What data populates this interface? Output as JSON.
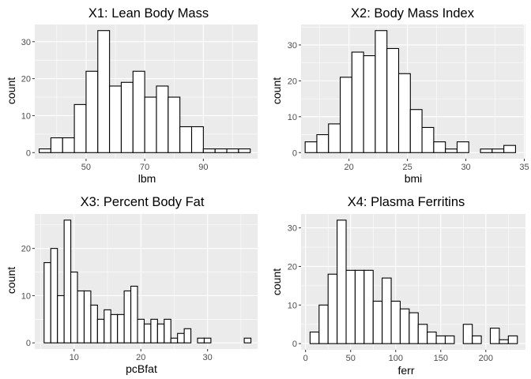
{
  "chart_data": [
    {
      "type": "bar",
      "title": "X1: Lean Body Mass",
      "xlabel": "lbm",
      "ylabel": "count",
      "xlim": [
        32.5,
        108.5
      ],
      "ylim": [
        -1.65,
        34.65
      ],
      "xticks": [
        50,
        70,
        90
      ],
      "yticks": [
        0,
        10,
        20,
        30
      ],
      "xminor": [
        40,
        60,
        80,
        100
      ],
      "yminor": [
        5,
        15,
        25
      ],
      "bars": {
        "x": [
          36,
          40,
          44,
          48,
          52,
          56,
          60,
          64,
          68,
          72,
          76,
          80,
          84,
          88,
          92,
          96,
          100,
          104
        ],
        "values": [
          1,
          4,
          4,
          13,
          22,
          33,
          18,
          19,
          22,
          15,
          18,
          15,
          7,
          7,
          1,
          1,
          1,
          1
        ]
      }
    },
    {
      "type": "bar",
      "title": "X2: Body Mass Index",
      "xlabel": "bmi",
      "ylabel": "count",
      "xlim": [
        15.9,
        35.1
      ],
      "ylim": [
        -1.7,
        35.7
      ],
      "xticks": [
        20,
        25,
        30,
        35
      ],
      "yticks": [
        0,
        10,
        20,
        30
      ],
      "xminor": [
        17.5,
        22.5,
        27.5,
        32.5
      ],
      "yminor": [
        5,
        15,
        25,
        35
      ],
      "bars": {
        "x": [
          16.75,
          17.75,
          18.75,
          19.75,
          20.75,
          21.75,
          22.75,
          23.75,
          24.75,
          25.75,
          26.75,
          27.75,
          28.75,
          29.75,
          30.75,
          31.75,
          32.75,
          33.75
        ],
        "values": [
          3,
          5,
          8,
          21,
          28,
          27,
          34,
          29,
          22,
          12,
          7,
          3,
          1,
          3,
          0,
          1,
          1,
          2
        ]
      }
    },
    {
      "type": "bar",
      "title": "X3: Percent Body Fat",
      "xlabel": "pcBfat",
      "ylabel": "count",
      "xlim": [
        4.1,
        37.5
      ],
      "ylim": [
        -1.3,
        27.3
      ],
      "xticks": [
        10,
        20,
        30
      ],
      "yticks": [
        0,
        10,
        20
      ],
      "xminor": [
        5,
        15,
        25,
        35
      ],
      "yminor": [
        5,
        15,
        25
      ],
      "bars": {
        "x": [
          6,
          7,
          8,
          9,
          10,
          11,
          12,
          13,
          14,
          15,
          16,
          17,
          18,
          19,
          20,
          21,
          22,
          23,
          24,
          25,
          26,
          27,
          28,
          29,
          30,
          31,
          32,
          33,
          34,
          35,
          36
        ],
        "values": [
          17,
          20,
          10,
          26,
          15,
          11,
          11,
          8,
          5,
          7,
          6,
          6,
          11,
          12,
          5,
          4,
          5,
          4,
          5,
          1,
          2,
          3,
          0,
          1,
          1,
          0,
          0,
          0,
          0,
          0,
          1
        ]
      }
    },
    {
      "type": "bar",
      "title": "X4: Plasma Ferritins",
      "xlabel": "ferr",
      "ylabel": "count",
      "xlim": [
        -5,
        244
      ],
      "ylim": [
        -1.6,
        33.6
      ],
      "xticks": [
        0,
        50,
        100,
        150,
        200
      ],
      "yticks": [
        0,
        10,
        20,
        30
      ],
      "xminor": [
        25,
        75,
        125,
        175,
        225
      ],
      "yminor": [
        5,
        15,
        25
      ],
      "bars": {
        "x": [
          10,
          20,
          30,
          40,
          50,
          60,
          70,
          80,
          90,
          100,
          110,
          120,
          130,
          140,
          150,
          160,
          170,
          180,
          190,
          200,
          210,
          220,
          230
        ],
        "values": [
          3,
          10,
          18,
          32,
          19,
          19,
          19,
          11,
          17,
          11,
          9,
          8,
          5,
          3,
          2,
          2,
          0,
          5,
          2,
          0,
          4,
          1,
          2
        ]
      }
    }
  ]
}
